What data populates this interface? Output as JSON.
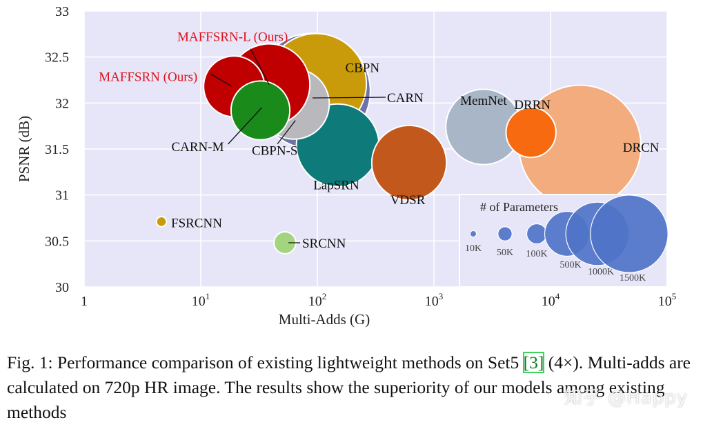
{
  "chart_data": {
    "type": "scatter",
    "subtype": "bubble",
    "xlabel": "Multi-Adds (G)",
    "ylabel": "PSNR (dB)",
    "xscale": "log",
    "xlim": [
      1,
      100000
    ],
    "ylim": [
      30,
      33
    ],
    "x_ticks": [
      {
        "value": 1,
        "base": "1",
        "exp": ""
      },
      {
        "value": 10,
        "base": "10",
        "exp": "1"
      },
      {
        "value": 100,
        "base": "10",
        "exp": "2"
      },
      {
        "value": 1000,
        "base": "10",
        "exp": "3"
      },
      {
        "value": 10000,
        "base": "10",
        "exp": "4"
      },
      {
        "value": 100000,
        "base": "10",
        "exp": "5"
      }
    ],
    "y_ticks": [
      "30",
      "30.5",
      "31",
      "31.5",
      "32",
      "32.5",
      "33"
    ],
    "grid": true,
    "background": "#e6e6f8",
    "series": [
      {
        "name": "DRCN",
        "x": 17900,
        "y": 31.53,
        "params_k": 1774,
        "color": "#f2ac7e"
      },
      {
        "name": "CARN",
        "x": 90.9,
        "y": 32.13,
        "params_k": 1592,
        "color": "#6f72a8"
      },
      {
        "name": "CBPN",
        "x": 97.9,
        "y": 32.21,
        "params_k": 1197,
        "color": "#c99a0a"
      },
      {
        "name": "LapSRN",
        "x": 149.4,
        "y": 31.54,
        "params_k": 813,
        "color": "#0f7a7a"
      },
      {
        "name": "VDSR",
        "x": 612.6,
        "y": 31.35,
        "params_k": 665,
        "color": "#c2581b"
      },
      {
        "name": "MemNet",
        "x": 2662.4,
        "y": 31.74,
        "params_k": 677,
        "color": "#a9b6c7"
      },
      {
        "name": "CBPN-S",
        "x": 63.1,
        "y": 31.99,
        "params_k": 592,
        "color": "#b9b9bd"
      },
      {
        "name": "MAFFSRN-L (Ours)",
        "x": 38.6,
        "y": 32.2,
        "params_k": 790,
        "color": "#c00000"
      },
      {
        "name": "MAFFSRN (Ours)",
        "x": 19.3,
        "y": 32.18,
        "params_k": 441,
        "color": "#c00000"
      },
      {
        "name": "CARN-M",
        "x": 32.5,
        "y": 31.92,
        "params_k": 412,
        "color": "#1a8a1a"
      },
      {
        "name": "DRRN",
        "x": 6796.9,
        "y": 31.68,
        "params_k": 297,
        "color": "#f86a10"
      },
      {
        "name": "SRCNN",
        "x": 52.7,
        "y": 30.48,
        "params_k": 57,
        "color": "#a3d47f"
      },
      {
        "name": "FSRCNN",
        "x": 4.6,
        "y": 30.71,
        "params_k": 12,
        "color": "#c99a0a"
      }
    ],
    "legend": {
      "title": "# of Parameters",
      "placement": "bottom-right",
      "color": "#4f74c8",
      "items": [
        {
          "label": "10K",
          "params_k": 10
        },
        {
          "label": "50K",
          "params_k": 50
        },
        {
          "label": "100K",
          "params_k": 100
        },
        {
          "label": "500K",
          "params_k": 500
        },
        {
          "label": "1000K",
          "params_k": 1000
        },
        {
          "label": "1500K",
          "params_k": 1500
        }
      ]
    }
  },
  "caption": {
    "prefix": "Fig. 1: Performance comparison of existing lightweight methods on Set5 ",
    "ref": "[3]",
    "suffix": " (4×). Multi-adds are calculated on 720p HR image. The results show the superiority of our models among existing methods"
  },
  "watermark": "知乎 @Happy"
}
